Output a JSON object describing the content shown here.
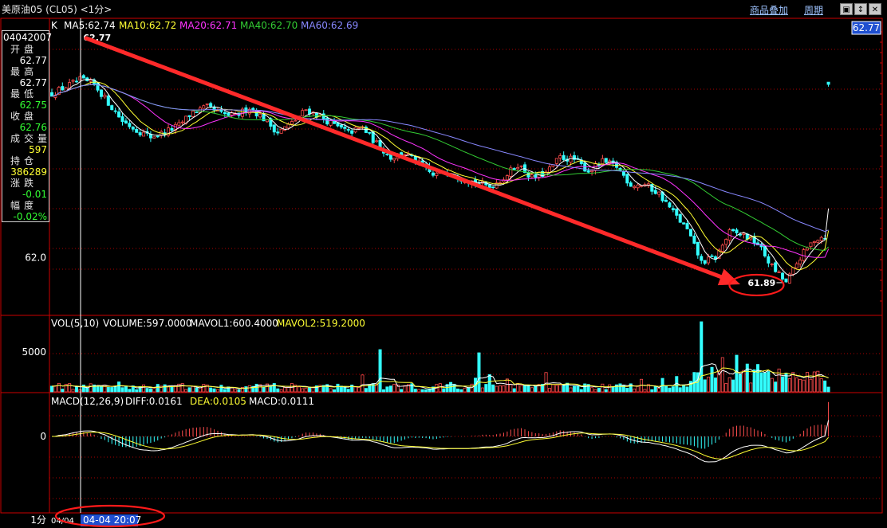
{
  "window": {
    "title": "美原油05 (CL05) <1分>",
    "links": {
      "overlay": "商品叠加",
      "period": "周期"
    },
    "buttons": [
      "▣",
      "↕",
      "✕"
    ]
  },
  "info_panel": {
    "date": "04042007",
    "rows": [
      {
        "label": "开盘",
        "value": "62.77",
        "color": "#ffffff"
      },
      {
        "label": "最高",
        "value": "62.77",
        "color": "#ffffff"
      },
      {
        "label": "最低",
        "value": "62.75",
        "color": "#33ff33"
      },
      {
        "label": "收盘",
        "value": "62.76",
        "color": "#33ff33"
      },
      {
        "label": "成交量",
        "value": "597",
        "color": "#ffff33"
      },
      {
        "label": "持仓",
        "value": "386289",
        "color": "#ffff33"
      },
      {
        "label": "涨跌",
        "value": "-0.01",
        "color": "#33ff33"
      },
      {
        "label": "幅度",
        "value": "-0.02%",
        "color": "#33ff33"
      }
    ]
  },
  "colors": {
    "up": "#ff4d4d",
    "down": "#33ffff",
    "ma5": "#ffffff",
    "ma10": "#ffff33",
    "ma20": "#ff33ff",
    "ma40": "#33cc33",
    "ma60": "#8888ff",
    "grid": "#aa0000",
    "frame": "#cc0000",
    "arrow": "#ff2a2a",
    "highlight": "#ff1a1a"
  },
  "chart_data": [
    {
      "type": "candlestick",
      "panel": "price",
      "header": "K",
      "legend": [
        {
          "name": "MA5",
          "value": "62.74",
          "color": "#ffffff"
        },
        {
          "name": "MA10",
          "value": "62.72",
          "color": "#ffff33"
        },
        {
          "name": "MA20",
          "value": "62.71",
          "color": "#ff33ff"
        },
        {
          "name": "MA40",
          "value": "62.70",
          "color": "#33cc33"
        },
        {
          "name": "MA60",
          "value": "62.69",
          "color": "#8888ff"
        }
      ],
      "y_tick_labels": [
        {
          "value": 62.0,
          "label": "62.0"
        }
      ],
      "ylim": [
        61.75,
        63.05
      ],
      "current_price": "62.77",
      "high_marker": {
        "label": "62.77",
        "value": 62.77
      },
      "low_marker": {
        "label": "61.89",
        "value": 61.89
      },
      "anchors": [
        [
          0,
          62.72
        ],
        [
          4,
          62.75
        ],
        [
          8,
          62.78
        ],
        [
          12,
          62.76
        ],
        [
          16,
          62.68
        ],
        [
          20,
          62.6
        ],
        [
          24,
          62.56
        ],
        [
          28,
          62.53
        ],
        [
          32,
          62.55
        ],
        [
          36,
          62.58
        ],
        [
          40,
          62.64
        ],
        [
          44,
          62.66
        ],
        [
          48,
          62.63
        ],
        [
          52,
          62.62
        ],
        [
          56,
          62.66
        ],
        [
          60,
          62.61
        ],
        [
          64,
          62.55
        ],
        [
          68,
          62.59
        ],
        [
          72,
          62.65
        ],
        [
          76,
          62.62
        ],
        [
          80,
          62.58
        ],
        [
          84,
          62.55
        ],
        [
          88,
          62.57
        ],
        [
          92,
          62.5
        ],
        [
          96,
          62.44
        ],
        [
          100,
          62.46
        ],
        [
          104,
          62.41
        ],
        [
          108,
          62.36
        ],
        [
          112,
          62.38
        ],
        [
          116,
          62.35
        ],
        [
          120,
          62.33
        ],
        [
          124,
          62.31
        ],
        [
          128,
          62.35
        ],
        [
          132,
          62.41
        ],
        [
          136,
          62.35
        ],
        [
          140,
          62.37
        ],
        [
          144,
          62.44
        ],
        [
          148,
          62.43
        ],
        [
          152,
          62.38
        ],
        [
          156,
          62.42
        ],
        [
          160,
          62.4
        ],
        [
          164,
          62.32
        ],
        [
          168,
          62.32
        ],
        [
          172,
          62.28
        ],
        [
          176,
          62.2
        ],
        [
          180,
          62.12
        ],
        [
          184,
          61.98
        ],
        [
          188,
          62.0
        ],
        [
          192,
          62.11
        ],
        [
          196,
          62.1
        ],
        [
          200,
          62.06
        ],
        [
          204,
          61.96
        ],
        [
          208,
          61.89
        ],
        [
          212,
          62.0
        ],
        [
          216,
          62.08
        ],
        [
          220,
          62.1
        ]
      ],
      "n_bars": 221
    },
    {
      "type": "bar",
      "panel": "volume",
      "header": "VOL(5,10)",
      "legend": [
        {
          "name": "VOLUME",
          "value": "597.0000",
          "color": "#ffffff"
        },
        {
          "name": "MAVOL1",
          "value": "600.4000",
          "color": "#ffffff"
        },
        {
          "name": "MAVOL2",
          "value": "519.2000",
          "color": "#ffff33"
        }
      ],
      "y_tick_labels": [
        {
          "value": 5000,
          "label": "5000"
        }
      ],
      "ylim": [
        0,
        9500
      ]
    },
    {
      "type": "macd",
      "panel": "macd",
      "header": "MACD(12,26,9)",
      "legend": [
        {
          "name": "DIFF",
          "value": "0.0161",
          "color": "#ffffff"
        },
        {
          "name": "DEA",
          "value": "0.0105",
          "color": "#ffff33"
        },
        {
          "name": "MACD",
          "value": "0.0111",
          "color": "#ffffff"
        }
      ],
      "y_tick_labels": [
        {
          "value": 0,
          "label": "0"
        }
      ]
    }
  ],
  "footer": {
    "period": "1分",
    "start_time": "04/04",
    "cursor_time": "04-04 20:07"
  }
}
